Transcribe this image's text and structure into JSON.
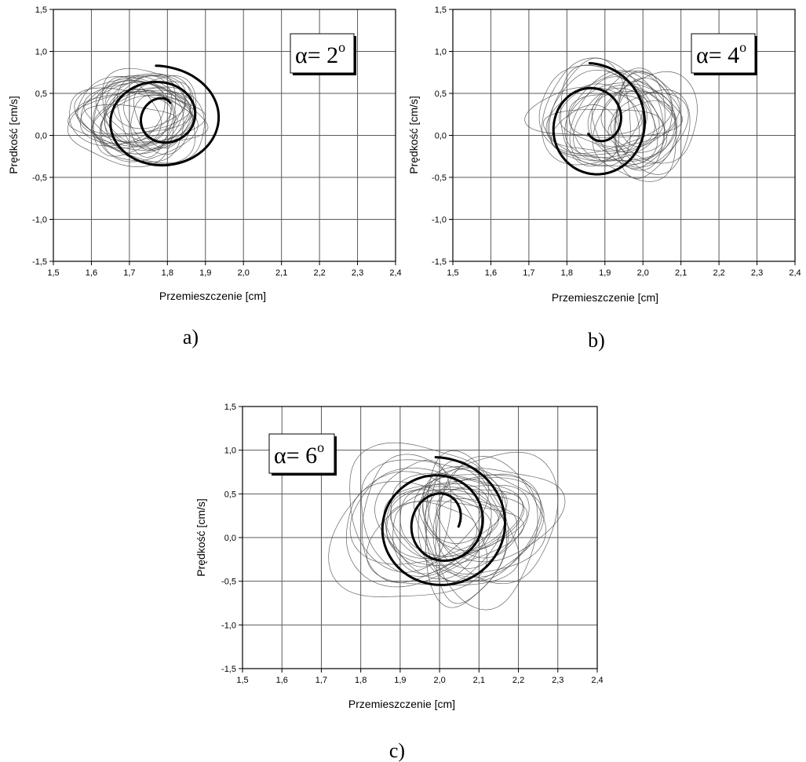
{
  "chart_data": [
    {
      "id": "a",
      "type": "line",
      "caption": "a)",
      "annotation": {
        "prefix": "α= 2",
        "superscript": "o"
      },
      "xlabel": "Przemieszczenie [cm]",
      "ylabel": "Prędkość [cm/s]",
      "xlim": [
        1.5,
        2.4
      ],
      "ylim": [
        -1.5,
        1.5
      ],
      "xticks": [
        "1,5",
        "1,6",
        "1,7",
        "1,8",
        "1,9",
        "2,0",
        "2,1",
        "2,2",
        "2,3",
        "2,4"
      ],
      "yticks": [
        "-1,5",
        "-1,0",
        "-0,5",
        "0,0",
        "0,5",
        "1,0",
        "1,5"
      ],
      "grid": true,
      "series": [
        {
          "style": "thin",
          "center": [
            1.73,
            0.22
          ],
          "radius": [
            0.15,
            0.5
          ],
          "loops": 26
        },
        {
          "style": "thick",
          "center": [
            1.79,
            0.17
          ],
          "radius_start": [
            0.18,
            0.66
          ],
          "radius_end": [
            0.03,
            0.17
          ],
          "turns": 2.1
        }
      ]
    },
    {
      "id": "b",
      "type": "line",
      "caption": "b)",
      "annotation": {
        "prefix": "α= 4",
        "superscript": "o"
      },
      "xlabel": "Przemieszczenie [cm]",
      "ylabel": "Prędkość [cm/s]",
      "xlim": [
        1.5,
        2.4
      ],
      "ylim": [
        -1.5,
        1.5
      ],
      "xticks": [
        "1,5",
        "1,6",
        "1,7",
        "1,8",
        "1,9",
        "2,0",
        "2,1",
        "2,2",
        "2,3",
        "2,4"
      ],
      "yticks": [
        "-1,5",
        "-1,0",
        "-0,5",
        "0,0",
        "0,5",
        "1,0",
        "1,5"
      ],
      "grid": true,
      "series": [
        {
          "style": "thin",
          "center": [
            1.93,
            0.15
          ],
          "radius": [
            0.17,
            0.62
          ],
          "loops": 26
        },
        {
          "style": "thick",
          "center": [
            1.88,
            0.1
          ],
          "radius_start": [
            0.16,
            0.76
          ],
          "radius_end": [
            0.04,
            0.2
          ],
          "turns": 1.6
        }
      ]
    },
    {
      "id": "c",
      "type": "line",
      "caption": "c)",
      "annotation": {
        "prefix": "α= 6",
        "superscript": "o"
      },
      "xlabel": "Przemieszczenie [cm]",
      "ylabel": "Prędkość [cm/s]",
      "xlim": [
        1.5,
        2.4
      ],
      "ylim": [
        -1.5,
        1.5
      ],
      "xticks": [
        "1,5",
        "1,6",
        "1,7",
        "1,8",
        "1,9",
        "2,0",
        "2,1",
        "2,2",
        "2,3",
        "2,4"
      ],
      "yticks": [
        "-1,5",
        "-1,0",
        "-0,5",
        "0,0",
        "0,5",
        "1,0",
        "1,5"
      ],
      "grid": true,
      "series": [
        {
          "style": "thin",
          "center": [
            2.03,
            0.15
          ],
          "radius": [
            0.19,
            0.78
          ],
          "loops": 28
        },
        {
          "style": "thick",
          "center": [
            2.01,
            0.12
          ],
          "radius_start": [
            0.19,
            0.8
          ],
          "radius_end": [
            0.04,
            0.24
          ],
          "turns": 2.3
        }
      ]
    }
  ]
}
